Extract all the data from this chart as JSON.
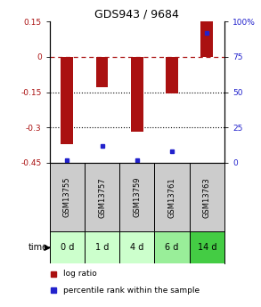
{
  "title": "GDS943 / 9684",
  "samples": [
    "GSM13755",
    "GSM13757",
    "GSM13759",
    "GSM13761",
    "GSM13763"
  ],
  "time_labels": [
    "0 d",
    "1 d",
    "4 d",
    "6 d",
    "14 d"
  ],
  "log_ratios": [
    -0.37,
    -0.13,
    -0.32,
    -0.155,
    0.15
  ],
  "percentile_ranks": [
    2,
    12,
    2,
    8,
    92
  ],
  "bar_color": "#aa1111",
  "dot_color": "#2222cc",
  "ylim_left": [
    -0.45,
    0.15
  ],
  "ylim_right": [
    0,
    100
  ],
  "yticks_left": [
    0.15,
    0,
    -0.15,
    -0.3,
    -0.45
  ],
  "yticks_right": [
    100,
    75,
    50,
    25,
    0
  ],
  "hlines_dotted": [
    -0.15,
    -0.3
  ],
  "hline_dashed": 0,
  "bg_color_sample": "#cccccc",
  "time_bg_colors": [
    "#ccffcc",
    "#ccffcc",
    "#ccffcc",
    "#99ee99",
    "#44cc44"
  ],
  "bar_width": 0.35
}
